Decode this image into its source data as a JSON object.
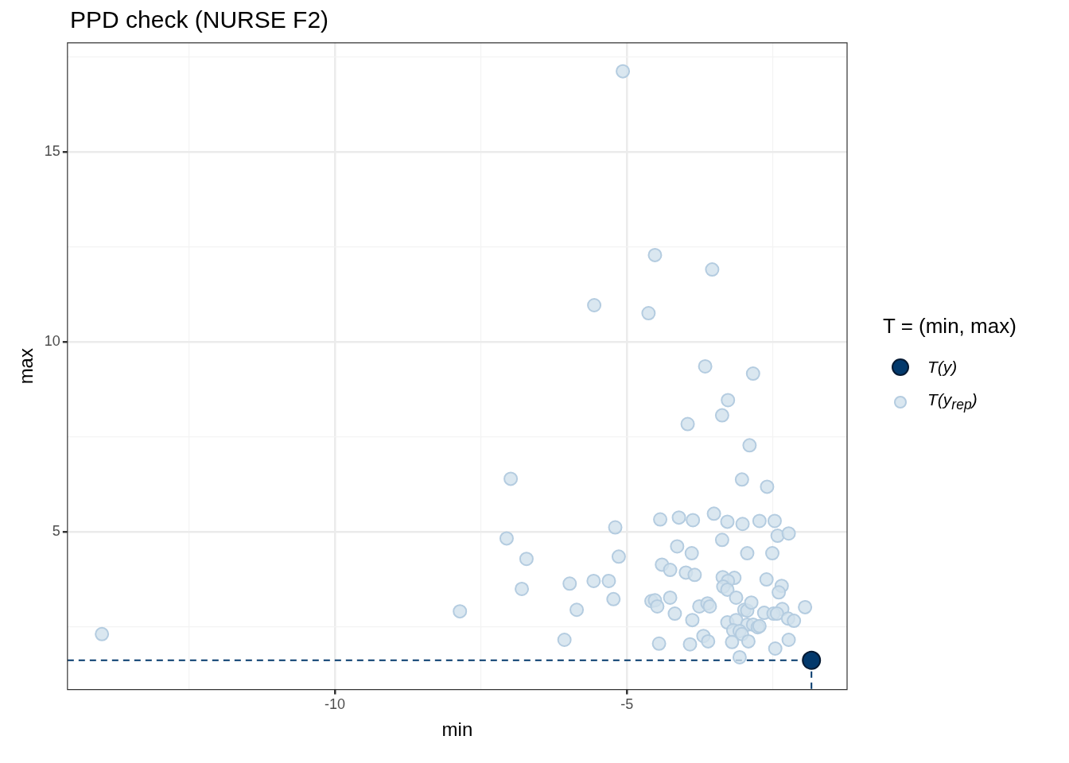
{
  "chart_data": {
    "type": "scatter",
    "title": "PPD check (NURSE F2)",
    "xlabel": "min",
    "ylabel": "max",
    "legend_title": "T = (min, max)",
    "legend": "right",
    "grid": true,
    "marker": "circle",
    "xlim": [
      -14.58,
      -1.23
    ],
    "xticks": [
      {
        "value": -12.5,
        "label": null
      },
      -10,
      {
        "value": -7.5,
        "label": null
      },
      -5,
      {
        "value": -2.5,
        "label": null
      }
    ],
    "ylim": [
      0.84,
      17.87
    ],
    "yticks": [
      {
        "value": 2.5,
        "label": null
      },
      5,
      {
        "value": 7.5,
        "label": null
      },
      10,
      {
        "value": 12.5,
        "label": null
      },
      15,
      {
        "value": 17.5,
        "label": null
      }
    ],
    "series": [
      {
        "type": "line",
        "color": "#03396c",
        "line_style": "dashed",
        "marker": "none",
        "x": [
          -14.58,
          -1.84
        ],
        "values": [
          1.61,
          1.61
        ]
      },
      {
        "type": "line",
        "color": "#03396c",
        "line_style": "dashed",
        "marker": "none",
        "x": [
          -1.84,
          -1.84
        ],
        "values": [
          1.61,
          0.84
        ]
      },
      {
        "name": "T(y)",
        "color": "#03396c",
        "x": [
          -1.84
        ],
        "values": [
          1.61
        ]
      },
      {
        "name": "T(y$_{rep}$)",
        "color": "#d1e1ec",
        "x": [
          -13.99,
          -7.86,
          -6.99,
          -7.06,
          -6.72,
          -6.8,
          -6.07,
          -5.98,
          -5.86,
          -5.57,
          -5.31,
          -5.23,
          -5.2,
          -5.14,
          -5.56,
          -5.07,
          -4.52,
          -4.63,
          -3.54,
          -3.66,
          -2.84,
          -3.27,
          -3.37,
          -3.96,
          -2.9,
          -3.03,
          -2.6,
          -4.43,
          -4.11,
          -3.87,
          -3.51,
          -3.28,
          -3.02,
          -2.73,
          -2.47,
          -2.42,
          -2.23,
          -3.37,
          -4.14,
          -3.89,
          -2.94,
          -2.51,
          -4.4,
          -4.26,
          -3.99,
          -3.84,
          -3.36,
          -3.16,
          -3.27,
          -3.35,
          -3.28,
          -2.61,
          -2.35,
          -2.4,
          -4.58,
          -4.52,
          -4.48,
          -4.26,
          -4.18,
          -3.76,
          -3.62,
          -3.58,
          -3.13,
          -2.99,
          -2.94,
          -2.87,
          -2.65,
          -2.34,
          -2.49,
          -2.43,
          -2.24,
          -2.14,
          -1.95,
          -3.88,
          -3.28,
          -3.13,
          -2.94,
          -2.84,
          -2.76,
          -2.73,
          -3.18,
          -3.07,
          -3.03,
          -3.69,
          -3.61,
          -3.2,
          -2.92,
          -2.23,
          -2.46,
          -4.45,
          -3.92,
          -3.07
        ],
        "values": [
          2.3,
          2.9,
          6.39,
          4.82,
          4.28,
          3.49,
          2.15,
          3.63,
          2.94,
          3.7,
          3.7,
          3.22,
          5.11,
          4.34,
          10.96,
          17.12,
          12.28,
          10.75,
          11.9,
          9.35,
          9.16,
          8.46,
          8.06,
          7.83,
          7.27,
          6.37,
          6.18,
          5.32,
          5.37,
          5.3,
          5.47,
          5.26,
          5.2,
          5.28,
          5.28,
          4.89,
          4.95,
          4.78,
          4.61,
          4.43,
          4.43,
          4.43,
          4.13,
          3.99,
          3.92,
          3.86,
          3.8,
          3.78,
          3.7,
          3.55,
          3.47,
          3.74,
          3.57,
          3.4,
          3.17,
          3.19,
          3.03,
          3.26,
          2.84,
          3.03,
          3.11,
          3.03,
          3.26,
          2.94,
          2.92,
          3.13,
          2.86,
          2.96,
          2.84,
          2.84,
          2.71,
          2.65,
          3.01,
          2.67,
          2.61,
          2.67,
          2.55,
          2.55,
          2.48,
          2.51,
          2.4,
          2.38,
          2.3,
          2.25,
          2.11,
          2.09,
          2.11,
          2.15,
          1.92,
          2.05,
          2.03,
          1.69
        ]
      }
    ]
  }
}
